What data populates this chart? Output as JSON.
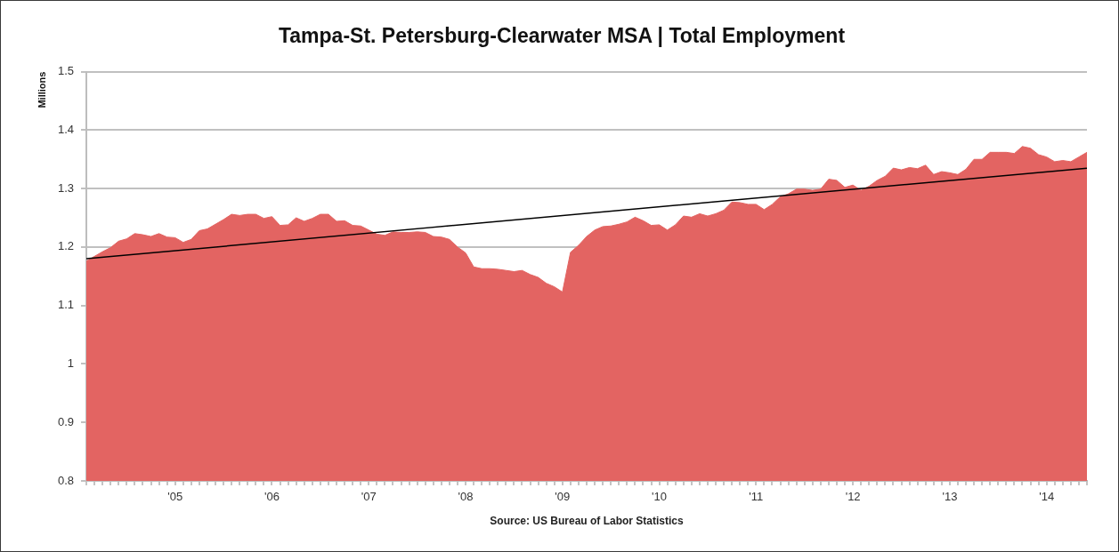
{
  "chart_data": {
    "type": "area",
    "title": "Tampa-St. Petersburg-Clearwater MSA | Total Employment",
    "ylabel": "Millions",
    "annotations": [
      "Source: US Bureau of Labor Statistics"
    ],
    "x": [
      "2004-02",
      "2004-03",
      "2004-04",
      "2004-05",
      "2004-06",
      "2004-07",
      "2004-08",
      "2004-09",
      "2004-10",
      "2004-11",
      "2004-12",
      "2005-01",
      "2005-02",
      "2005-03",
      "2005-04",
      "2005-05",
      "2005-06",
      "2005-07",
      "2005-08",
      "2005-09",
      "2005-10",
      "2005-11",
      "2005-12",
      "2006-01",
      "2006-02",
      "2006-03",
      "2006-04",
      "2006-05",
      "2006-06",
      "2006-07",
      "2006-08",
      "2006-09",
      "2006-10",
      "2006-11",
      "2006-12",
      "2007-01",
      "2007-02",
      "2007-03",
      "2007-04",
      "2007-05",
      "2007-06",
      "2007-07",
      "2007-08",
      "2007-09",
      "2007-10",
      "2007-11",
      "2007-12",
      "2008-01",
      "2008-02",
      "2008-03",
      "2008-04",
      "2008-05",
      "2008-06",
      "2008-07",
      "2008-08",
      "2008-09",
      "2008-10",
      "2008-11",
      "2008-12",
      "2009-01",
      "2009-02",
      "2009-03",
      "2009-04",
      "2009-05",
      "2009-06",
      "2009-07",
      "2009-08",
      "2009-09",
      "2009-10",
      "2009-11",
      "2009-12",
      "2010-01",
      "2010-02",
      "2010-03",
      "2010-04",
      "2010-05",
      "2010-06",
      "2010-07",
      "2010-08",
      "2010-09",
      "2010-10",
      "2010-11",
      "2010-12",
      "2011-01",
      "2011-02",
      "2011-03",
      "2011-04",
      "2011-05",
      "2011-06",
      "2011-07",
      "2011-08",
      "2011-09",
      "2011-10",
      "2011-11",
      "2011-12",
      "2012-01",
      "2012-02",
      "2012-03",
      "2012-04",
      "2012-05",
      "2012-06",
      "2012-07",
      "2012-08",
      "2012-09",
      "2012-10",
      "2012-11",
      "2012-12",
      "2013-01",
      "2013-02",
      "2013-03",
      "2013-04",
      "2013-05",
      "2013-06",
      "2013-07",
      "2013-08",
      "2013-09",
      "2013-10",
      "2013-11",
      "2013-12",
      "2014-01",
      "2014-02",
      "2014-03",
      "2014-04",
      "2014-05",
      "2014-06"
    ],
    "series": [
      {
        "color": "#e36462",
        "values": [
          1.176,
          1.184,
          1.192,
          1.199,
          1.21,
          1.214,
          1.223,
          1.221,
          1.218,
          1.223,
          1.217,
          1.216,
          1.208,
          1.213,
          1.228,
          1.231,
          1.239,
          1.247,
          1.256,
          1.254,
          1.256,
          1.256,
          1.249,
          1.252,
          1.237,
          1.238,
          1.25,
          1.244,
          1.249,
          1.256,
          1.256,
          1.244,
          1.245,
          1.237,
          1.236,
          1.229,
          1.222,
          1.22,
          1.226,
          1.225,
          1.225,
          1.226,
          1.225,
          1.218,
          1.217,
          1.213,
          1.2,
          1.19,
          1.166,
          1.163,
          1.163,
          1.162,
          1.16,
          1.158,
          1.16,
          1.153,
          1.148,
          1.138,
          1.132,
          1.123,
          1.191,
          1.203,
          1.218,
          1.229,
          1.235,
          1.236,
          1.239,
          1.243,
          1.251,
          1.245,
          1.237,
          1.238,
          1.229,
          1.238,
          1.253,
          1.251,
          1.257,
          1.253,
          1.257,
          1.263,
          1.277,
          1.276,
          1.273,
          1.273,
          1.264,
          1.273,
          1.286,
          1.291,
          1.299,
          1.299,
          1.297,
          1.299,
          1.316,
          1.314,
          1.302,
          1.306,
          1.297,
          1.304,
          1.314,
          1.321,
          1.335,
          1.332,
          1.336,
          1.334,
          1.34,
          1.324,
          1.329,
          1.327,
          1.324,
          1.333,
          1.35,
          1.35,
          1.362,
          1.362,
          1.362,
          1.36,
          1.372,
          1.369,
          1.358,
          1.354,
          1.346,
          1.348,
          1.346,
          1.354,
          1.362
        ]
      },
      {
        "type": "line",
        "color": "#000000",
        "x": [
          "2004-02",
          "2014-06"
        ],
        "values": [
          1.18,
          1.335
        ]
      }
    ],
    "xlim": [
      "2004-02",
      "2014-06"
    ],
    "xticks": [
      {
        "value": "2004-02",
        "label": null
      },
      {
        "value": "2004-03",
        "label": null
      },
      {
        "value": "2004-04",
        "label": null
      },
      {
        "value": "2004-05",
        "label": null
      },
      {
        "value": "2004-06",
        "label": null
      },
      {
        "value": "2004-07",
        "label": null
      },
      {
        "value": "2004-08",
        "label": null
      },
      {
        "value": "2004-09",
        "label": null
      },
      {
        "value": "2004-10",
        "label": null
      },
      {
        "value": "2004-11",
        "label": null
      },
      {
        "value": "2004-12",
        "label": null
      },
      {
        "value": "2005-01",
        "label": "'05"
      },
      {
        "value": "2005-02",
        "label": null
      },
      {
        "value": "2005-03",
        "label": null
      },
      {
        "value": "2005-04",
        "label": null
      },
      {
        "value": "2005-05",
        "label": null
      },
      {
        "value": "2005-06",
        "label": null
      },
      {
        "value": "2005-07",
        "label": null
      },
      {
        "value": "2005-08",
        "label": null
      },
      {
        "value": "2005-09",
        "label": null
      },
      {
        "value": "2005-10",
        "label": null
      },
      {
        "value": "2005-11",
        "label": null
      },
      {
        "value": "2005-12",
        "label": null
      },
      {
        "value": "2006-01",
        "label": "'06"
      },
      {
        "value": "2006-02",
        "label": null
      },
      {
        "value": "2006-03",
        "label": null
      },
      {
        "value": "2006-04",
        "label": null
      },
      {
        "value": "2006-05",
        "label": null
      },
      {
        "value": "2006-06",
        "label": null
      },
      {
        "value": "2006-07",
        "label": null
      },
      {
        "value": "2006-08",
        "label": null
      },
      {
        "value": "2006-09",
        "label": null
      },
      {
        "value": "2006-10",
        "label": null
      },
      {
        "value": "2006-11",
        "label": null
      },
      {
        "value": "2006-12",
        "label": null
      },
      {
        "value": "2007-01",
        "label": "'07"
      },
      {
        "value": "2007-02",
        "label": null
      },
      {
        "value": "2007-03",
        "label": null
      },
      {
        "value": "2007-04",
        "label": null
      },
      {
        "value": "2007-05",
        "label": null
      },
      {
        "value": "2007-06",
        "label": null
      },
      {
        "value": "2007-07",
        "label": null
      },
      {
        "value": "2007-08",
        "label": null
      },
      {
        "value": "2007-09",
        "label": null
      },
      {
        "value": "2007-10",
        "label": null
      },
      {
        "value": "2007-11",
        "label": null
      },
      {
        "value": "2007-12",
        "label": null
      },
      {
        "value": "2008-01",
        "label": "'08"
      },
      {
        "value": "2008-02",
        "label": null
      },
      {
        "value": "2008-03",
        "label": null
      },
      {
        "value": "2008-04",
        "label": null
      },
      {
        "value": "2008-05",
        "label": null
      },
      {
        "value": "2008-06",
        "label": null
      },
      {
        "value": "2008-07",
        "label": null
      },
      {
        "value": "2008-08",
        "label": null
      },
      {
        "value": "2008-09",
        "label": null
      },
      {
        "value": "2008-10",
        "label": null
      },
      {
        "value": "2008-11",
        "label": null
      },
      {
        "value": "2008-12",
        "label": null
      },
      {
        "value": "2009-01",
        "label": "'09"
      },
      {
        "value": "2009-02",
        "label": null
      },
      {
        "value": "2009-03",
        "label": null
      },
      {
        "value": "2009-04",
        "label": null
      },
      {
        "value": "2009-05",
        "label": null
      },
      {
        "value": "2009-06",
        "label": null
      },
      {
        "value": "2009-07",
        "label": null
      },
      {
        "value": "2009-08",
        "label": null
      },
      {
        "value": "2009-09",
        "label": null
      },
      {
        "value": "2009-10",
        "label": null
      },
      {
        "value": "2009-11",
        "label": null
      },
      {
        "value": "2009-12",
        "label": null
      },
      {
        "value": "2010-01",
        "label": "'10"
      },
      {
        "value": "2010-02",
        "label": null
      },
      {
        "value": "2010-03",
        "label": null
      },
      {
        "value": "2010-04",
        "label": null
      },
      {
        "value": "2010-05",
        "label": null
      },
      {
        "value": "2010-06",
        "label": null
      },
      {
        "value": "2010-07",
        "label": null
      },
      {
        "value": "2010-08",
        "label": null
      },
      {
        "value": "2010-09",
        "label": null
      },
      {
        "value": "2010-10",
        "label": null
      },
      {
        "value": "2010-11",
        "label": null
      },
      {
        "value": "2010-12",
        "label": null
      },
      {
        "value": "2011-01",
        "label": "'11"
      },
      {
        "value": "2011-02",
        "label": null
      },
      {
        "value": "2011-03",
        "label": null
      },
      {
        "value": "2011-04",
        "label": null
      },
      {
        "value": "2011-05",
        "label": null
      },
      {
        "value": "2011-06",
        "label": null
      },
      {
        "value": "2011-07",
        "label": null
      },
      {
        "value": "2011-08",
        "label": null
      },
      {
        "value": "2011-09",
        "label": null
      },
      {
        "value": "2011-10",
        "label": null
      },
      {
        "value": "2011-11",
        "label": null
      },
      {
        "value": "2011-12",
        "label": null
      },
      {
        "value": "2012-01",
        "label": "'12"
      },
      {
        "value": "2012-02",
        "label": null
      },
      {
        "value": "2012-03",
        "label": null
      },
      {
        "value": "2012-04",
        "label": null
      },
      {
        "value": "2012-05",
        "label": null
      },
      {
        "value": "2012-06",
        "label": null
      },
      {
        "value": "2012-07",
        "label": null
      },
      {
        "value": "2012-08",
        "label": null
      },
      {
        "value": "2012-09",
        "label": null
      },
      {
        "value": "2012-10",
        "label": null
      },
      {
        "value": "2012-11",
        "label": null
      },
      {
        "value": "2012-12",
        "label": null
      },
      {
        "value": "2013-01",
        "label": "'13"
      },
      {
        "value": "2013-02",
        "label": null
      },
      {
        "value": "2013-03",
        "label": null
      },
      {
        "value": "2013-04",
        "label": null
      },
      {
        "value": "2013-05",
        "label": null
      },
      {
        "value": "2013-06",
        "label": null
      },
      {
        "value": "2013-07",
        "label": null
      },
      {
        "value": "2013-08",
        "label": null
      },
      {
        "value": "2013-09",
        "label": null
      },
      {
        "value": "2013-10",
        "label": null
      },
      {
        "value": "2013-11",
        "label": null
      },
      {
        "value": "2013-12",
        "label": null
      },
      {
        "value": "2014-01",
        "label": "'14"
      },
      {
        "value": "2014-02",
        "label": null
      },
      {
        "value": "2014-03",
        "label": null
      },
      {
        "value": "2014-04",
        "label": null
      },
      {
        "value": "2014-05",
        "label": null
      },
      {
        "value": "2014-06",
        "label": null
      }
    ],
    "ylim": [
      0.8,
      1.5
    ],
    "yticks": [
      0.8,
      0.9,
      1,
      1.1,
      1.2,
      1.3,
      1.4,
      1.5
    ],
    "grid": "y"
  }
}
